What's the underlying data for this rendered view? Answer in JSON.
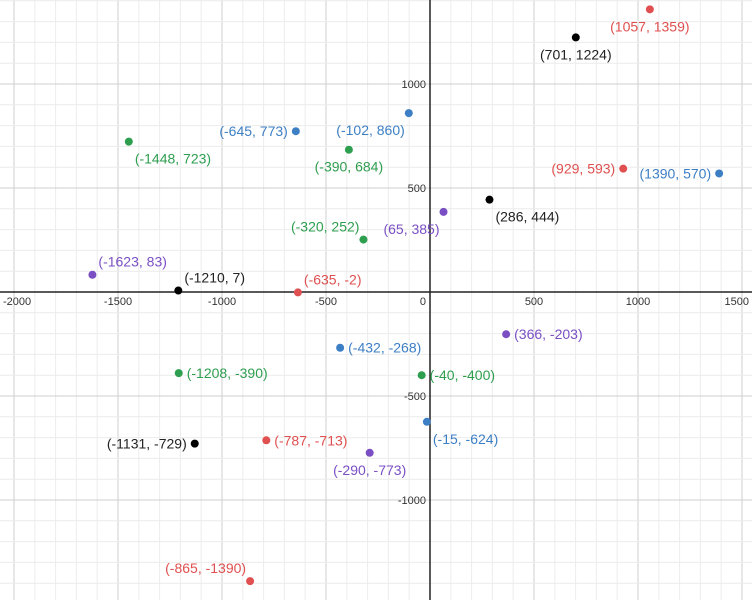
{
  "chart_data": {
    "type": "scatter",
    "title": "",
    "xlabel": "",
    "ylabel": "",
    "xlim": [
      -2000,
      1500
    ],
    "ylim": [
      -1440,
      1420
    ],
    "grid": true,
    "x_ticks": [
      {
        "value": -2000,
        "label": "-2000"
      },
      {
        "value": -1500,
        "label": "-1500"
      },
      {
        "value": -1000,
        "label": "-1000"
      },
      {
        "value": -500,
        "label": "-500"
      },
      {
        "value": 0,
        "label": "0"
      },
      {
        "value": 500,
        "label": "500"
      },
      {
        "value": 1000,
        "label": "1000"
      },
      {
        "value": 1500,
        "label": "1500"
      }
    ],
    "y_ticks": [
      {
        "value": 1000,
        "label": "1000"
      },
      {
        "value": 500,
        "label": "500"
      },
      {
        "value": -500,
        "label": "-500"
      },
      {
        "value": -1000,
        "label": "-1000"
      }
    ],
    "colors": {
      "red": "#e05050",
      "blue": "#3d7fc4",
      "green": "#2e9e4f",
      "purple": "#7a4fc4",
      "black": "#000000",
      "black_label": "#222222"
    },
    "points": [
      {
        "x": 1057,
        "y": 1359,
        "label": "(1057, 1359)",
        "color": "red",
        "pos": "below"
      },
      {
        "x": 701,
        "y": 1224,
        "label": "(701, 1224)",
        "color": "black",
        "pos": "below"
      },
      {
        "x": -645,
        "y": 773,
        "label": "(-645, 773)",
        "color": "blue",
        "pos": "left"
      },
      {
        "x": -102,
        "y": 860,
        "label": "(-102, 860)",
        "color": "blue",
        "pos": "belowleft"
      },
      {
        "x": -1448,
        "y": 723,
        "label": "(-1448, 723)",
        "color": "green",
        "pos": "belowright"
      },
      {
        "x": -390,
        "y": 684,
        "label": "(-390, 684)",
        "color": "green",
        "pos": "below"
      },
      {
        "x": 929,
        "y": 593,
        "label": "(929, 593)",
        "color": "red",
        "pos": "left"
      },
      {
        "x": 1390,
        "y": 570,
        "label": "(1390, 570)",
        "color": "blue",
        "pos": "left"
      },
      {
        "x": 286,
        "y": 444,
        "label": "(286, 444)",
        "color": "black",
        "pos": "belowright"
      },
      {
        "x": 65,
        "y": 385,
        "label": "(65, 385)",
        "color": "purple",
        "pos": "belowleft"
      },
      {
        "x": -320,
        "y": 252,
        "label": "(-320, 252)",
        "color": "green",
        "pos": "upleft"
      },
      {
        "x": -1623,
        "y": 83,
        "label": "(-1623, 83)",
        "color": "purple",
        "pos": "upright"
      },
      {
        "x": -1210,
        "y": 7,
        "label": "(-1210, 7)",
        "color": "black",
        "pos": "upright"
      },
      {
        "x": -635,
        "y": -2,
        "label": "(-635, -2)",
        "color": "red",
        "pos": "upright"
      },
      {
        "x": 366,
        "y": -203,
        "label": "(366, -203)",
        "color": "purple",
        "pos": "right"
      },
      {
        "x": -432,
        "y": -268,
        "label": "(-432, -268)",
        "color": "blue",
        "pos": "right"
      },
      {
        "x": -1208,
        "y": -390,
        "label": "(-1208, -390)",
        "color": "green",
        "pos": "right"
      },
      {
        "x": -40,
        "y": -400,
        "label": "(-40, -400)",
        "color": "green",
        "pos": "right"
      },
      {
        "x": -15,
        "y": -624,
        "label": "(-15, -624)",
        "color": "blue",
        "pos": "belowright"
      },
      {
        "x": -1131,
        "y": -729,
        "label": "(-1131, -729)",
        "color": "black",
        "pos": "left"
      },
      {
        "x": -787,
        "y": -713,
        "label": "(-787, -713)",
        "color": "red",
        "pos": "right"
      },
      {
        "x": -290,
        "y": -773,
        "label": "(-290, -773)",
        "color": "purple",
        "pos": "below"
      },
      {
        "x": -865,
        "y": -1390,
        "label": "(-865, -1390)",
        "color": "red",
        "pos": "upleft"
      }
    ]
  }
}
